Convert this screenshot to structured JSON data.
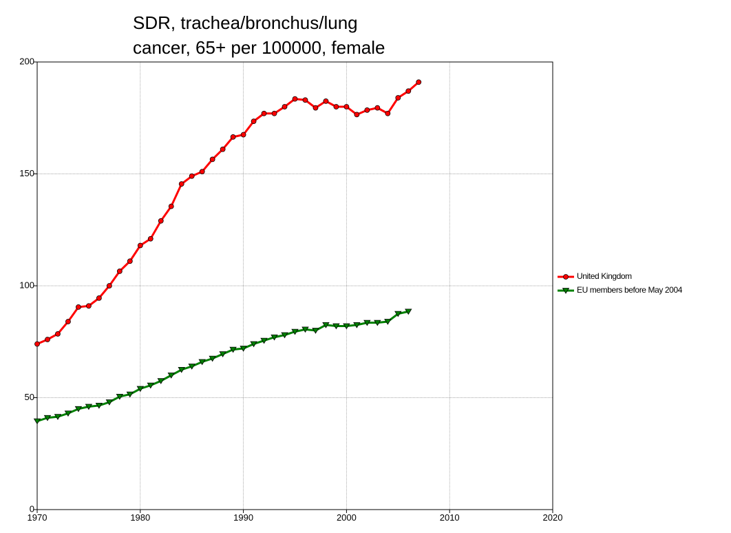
{
  "chart_data": {
    "type": "line",
    "title": [
      "SDR, trachea/bronchus/lung",
      "cancer, 65+ per 100000, female"
    ],
    "x": [
      1970,
      1971,
      1972,
      1973,
      1974,
      1975,
      1976,
      1977,
      1978,
      1979,
      1980,
      1981,
      1982,
      1983,
      1984,
      1985,
      1986,
      1987,
      1988,
      1989,
      1990,
      1991,
      1992,
      1993,
      1994,
      1995,
      1996,
      1997,
      1998,
      1999,
      2000,
      2001,
      2002,
      2003,
      2004,
      2005,
      2006,
      2007
    ],
    "series": [
      {
        "name": "United Kingdom",
        "color": "#ff0000",
        "marker": "circle",
        "values": [
          74,
          76,
          78.5,
          84,
          90.5,
          91,
          94.5,
          100,
          106.5,
          111,
          118,
          121,
          129,
          135.5,
          145.5,
          149,
          151,
          156.5,
          161,
          166.5,
          167.5,
          173.5,
          177,
          177,
          180,
          183.5,
          183,
          179.5,
          182.5,
          180,
          180,
          176.5,
          178.5,
          179.5,
          177,
          184,
          187,
          191
        ]
      },
      {
        "name": "EU members before May 2004",
        "color": "#008000",
        "marker": "triangle-down",
        "values": [
          39.5,
          41,
          41.5,
          43,
          45,
          46,
          46.5,
          48,
          50.5,
          51.5,
          54,
          55.5,
          57.5,
          60,
          62.5,
          64,
          66,
          67.5,
          69.5,
          71.5,
          72,
          74,
          75.5,
          77,
          78,
          79.5,
          80.5,
          80,
          82.5,
          82,
          82,
          82.5,
          83.5,
          83.5,
          84,
          87.5,
          88.5,
          null
        ]
      }
    ],
    "xlim": [
      1970,
      2020
    ],
    "xticks": [
      1970,
      1980,
      1990,
      2000,
      2010,
      2020
    ],
    "ylim": [
      0,
      200
    ],
    "yticks": [
      0,
      50,
      100,
      150,
      200
    ],
    "grid": true,
    "legend": "right"
  }
}
